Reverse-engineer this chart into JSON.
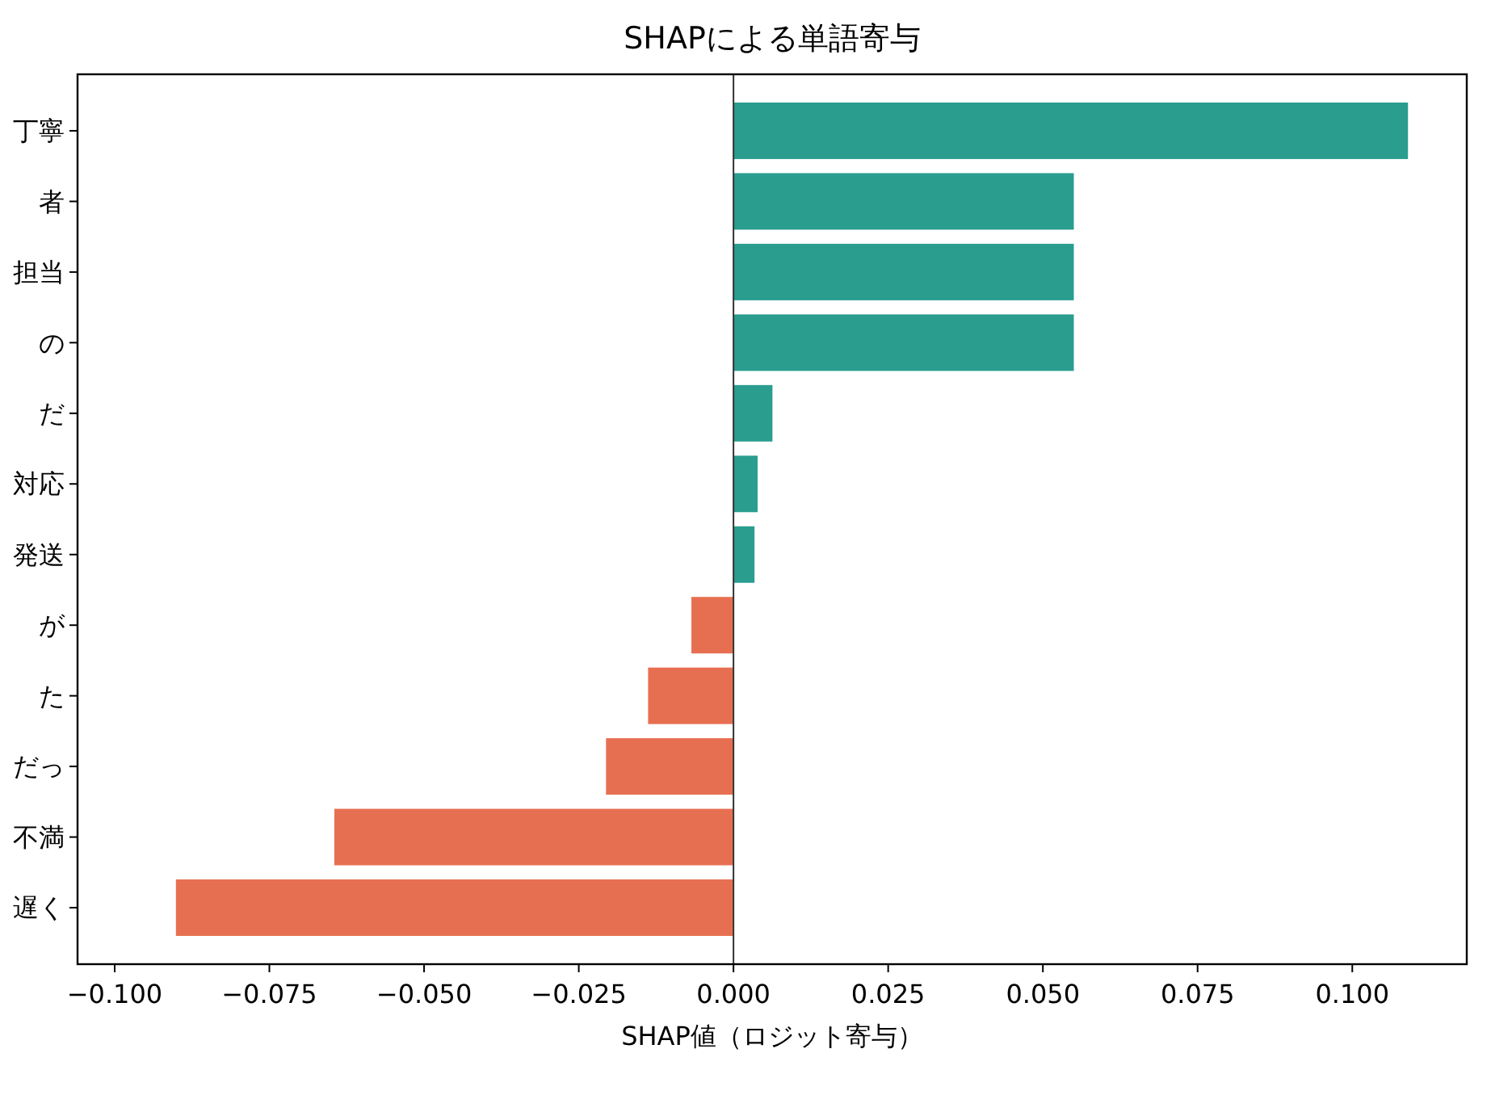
{
  "chart_data": {
    "type": "bar",
    "orientation": "horizontal",
    "title": "SHAPによる単語寄与",
    "xlabel": "SHAP値（ロジット寄与）",
    "categories": [
      "丁寧",
      "者",
      "担当",
      "の",
      "だ",
      "対応",
      "発送",
      "が",
      "た",
      "だっ",
      "不満",
      "遅く"
    ],
    "values": [
      0.109,
      0.055,
      0.055,
      0.055,
      0.0063,
      0.0039,
      0.0034,
      -0.0068,
      -0.0138,
      -0.0206,
      -0.0645,
      -0.0901
    ],
    "colors": [
      "#2a9d8f",
      "#2a9d8f",
      "#2a9d8f",
      "#2a9d8f",
      "#2a9d8f",
      "#2a9d8f",
      "#2a9d8f",
      "#e76f51",
      "#e76f51",
      "#e76f51",
      "#e76f51",
      "#e76f51"
    ],
    "xlim": [
      -0.106,
      0.1185
    ],
    "xticks": [
      {
        "value": -0.1,
        "label": "−0.100"
      },
      {
        "value": -0.075,
        "label": "−0.075"
      },
      {
        "value": -0.05,
        "label": "−0.050"
      },
      {
        "value": -0.025,
        "label": "−0.025"
      },
      {
        "value": 0,
        "label": "0.000"
      },
      {
        "value": 0.025,
        "label": "0.025"
      },
      {
        "value": 0.05,
        "label": "0.050"
      },
      {
        "value": 0.075,
        "label": "0.075"
      },
      {
        "value": 0.1,
        "label": "0.100"
      }
    ],
    "ref_lines": [
      {
        "axis": "x",
        "value": 0,
        "color": "#333333"
      }
    ],
    "grid": false
  }
}
